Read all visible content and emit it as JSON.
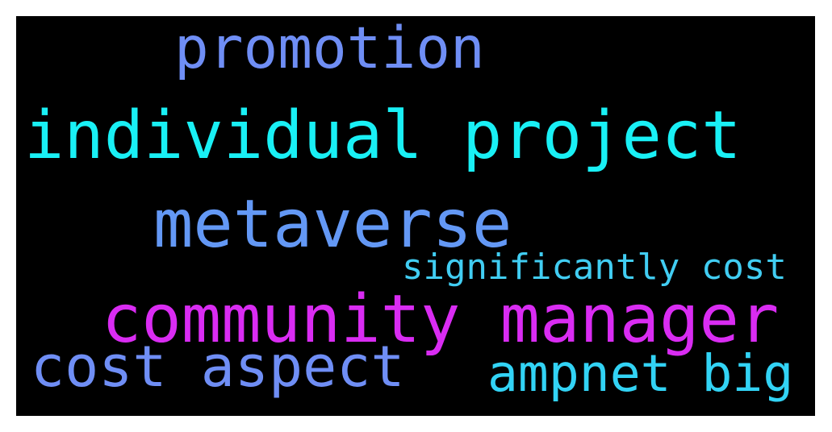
{
  "words": [
    {
      "text": "promotion",
      "color": "#6f8ef5"
    },
    {
      "text": "individual project",
      "color": "#19f0f5"
    },
    {
      "text": "metaverse",
      "color": "#6398f5"
    },
    {
      "text": "significantly cost",
      "color": "#41cdf2"
    },
    {
      "text": "community manager",
      "color": "#d92cf2"
    },
    {
      "text": "cost aspect",
      "color": "#6f8ef5"
    },
    {
      "text": "ampnet big",
      "color": "#32d3f5"
    }
  ]
}
